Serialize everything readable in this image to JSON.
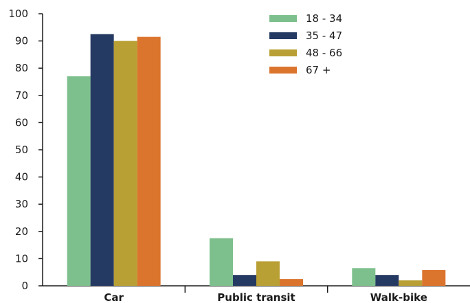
{
  "chart_data": {
    "type": "bar",
    "title": "",
    "xlabel": "",
    "ylabel": "",
    "categories": [
      "Car",
      "Public transit",
      "Walk-bike"
    ],
    "series": [
      {
        "name": "18 - 34",
        "color": "#7dc08d",
        "values": [
          77,
          17.5,
          6.5
        ]
      },
      {
        "name": "35 - 47",
        "color": "#253a63",
        "values": [
          92.5,
          4,
          4
        ]
      },
      {
        "name": "48 - 66",
        "color": "#b9a035",
        "values": [
          90,
          9,
          2
        ]
      },
      {
        "name": "67 +",
        "color": "#db742d",
        "values": [
          91.5,
          2.5,
          5.8
        ]
      }
    ],
    "ylim": [
      0,
      100
    ],
    "yticks": [
      "0",
      "10",
      "20",
      "30",
      "40",
      "50",
      "60",
      "70",
      "80",
      "90",
      "100"
    ],
    "grid": false,
    "legend_position": "top-right"
  }
}
